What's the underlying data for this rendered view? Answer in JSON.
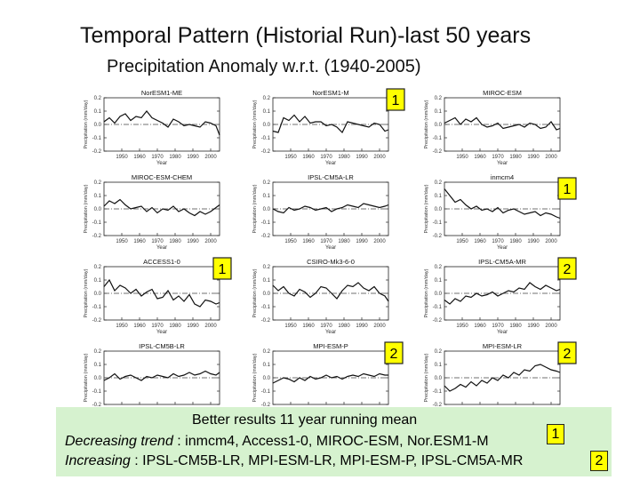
{
  "title": "Temporal Pattern (Historial Run)-last 50 years",
  "subtitle": "Precipitation Anomaly  w.r.t. (1940-2005)",
  "colors": {
    "line": "#111111",
    "zero_line": "#444444",
    "note_fill": "#ffff00",
    "summary_bg": "#d6f2cf"
  },
  "summary": {
    "heading": "Better results 11 year running mean",
    "decreasing_label": "Decreasing trend",
    "decreasing_models": " : inmcm4, Access1-0, MIROC-ESM, Nor.ESM1-M",
    "decreasing_rank": "1",
    "increasing_label": "Increasing",
    "increasing_models": " : IPSL-CM5B-LR, MPI-ESM-LR, MPI-ESM-P, IPSL-CM5A-MR",
    "increasing_rank": "2"
  },
  "chart_data": [
    {
      "type": "line",
      "title": "NorESM1-ME",
      "xlabel": "Year",
      "ylabel": "Precipitation (mm/day)",
      "xlim": [
        1940,
        2005
      ],
      "ylim": [
        -0.2,
        0.2
      ],
      "x": [
        1940,
        1943,
        1946,
        1949,
        1952,
        1955,
        1958,
        1961,
        1964,
        1967,
        1970,
        1973,
        1976,
        1979,
        1982,
        1985,
        1988,
        1991,
        1994,
        1997,
        2000,
        2003,
        2005
      ],
      "values": [
        0.02,
        0.05,
        0.01,
        0.06,
        0.08,
        0.03,
        0.06,
        0.05,
        0.1,
        0.05,
        0.03,
        0.01,
        -0.02,
        0.04,
        0.02,
        -0.01,
        0.0,
        -0.01,
        -0.02,
        0.02,
        0.01,
        -0.01,
        -0.08
      ],
      "rank": ""
    },
    {
      "type": "line",
      "title": "NorESM1-M",
      "xlabel": "Year",
      "ylabel": "Precipitation (mm/day)",
      "xlim": [
        1940,
        2005
      ],
      "ylim": [
        -0.2,
        0.2
      ],
      "x": [
        1940,
        1943,
        1946,
        1949,
        1952,
        1955,
        1958,
        1961,
        1964,
        1967,
        1970,
        1973,
        1976,
        1979,
        1982,
        1985,
        1988,
        1991,
        1994,
        1997,
        2000,
        2003,
        2005
      ],
      "values": [
        -0.05,
        -0.06,
        0.05,
        0.03,
        0.07,
        0.02,
        0.06,
        0.01,
        0.02,
        0.02,
        -0.01,
        0.0,
        -0.02,
        -0.06,
        0.02,
        0.01,
        0.0,
        -0.01,
        -0.02,
        0.01,
        0.0,
        -0.05,
        -0.04
      ],
      "rank": "1"
    },
    {
      "type": "line",
      "title": "MIROC-ESM",
      "xlabel": "Year",
      "ylabel": "Precipitation (mm/day)",
      "xlim": [
        1940,
        2005
      ],
      "ylim": [
        -0.2,
        0.2
      ],
      "x": [
        1940,
        1943,
        1946,
        1949,
        1952,
        1955,
        1958,
        1961,
        1964,
        1967,
        1970,
        1973,
        1976,
        1979,
        1982,
        1985,
        1988,
        1991,
        1994,
        1997,
        2000,
        2003,
        2005
      ],
      "values": [
        0.01,
        0.03,
        0.05,
        0.0,
        0.04,
        0.02,
        0.05,
        0.0,
        -0.02,
        -0.01,
        0.01,
        -0.03,
        -0.02,
        -0.01,
        0.0,
        -0.02,
        0.01,
        0.0,
        -0.03,
        -0.02,
        0.02,
        -0.04,
        -0.03
      ],
      "rank": ""
    },
    {
      "type": "line",
      "title": "MIROC-ESM-CHEM",
      "xlabel": "Year",
      "ylabel": "Precipitation (mm/day)",
      "xlim": [
        1940,
        2005
      ],
      "ylim": [
        -0.2,
        0.2
      ],
      "x": [
        1940,
        1943,
        1946,
        1949,
        1952,
        1955,
        1958,
        1961,
        1964,
        1967,
        1970,
        1973,
        1976,
        1979,
        1982,
        1985,
        1988,
        1991,
        1994,
        1997,
        2000,
        2003,
        2005
      ],
      "values": [
        0.02,
        0.06,
        0.04,
        0.07,
        0.03,
        0.0,
        0.01,
        0.02,
        -0.02,
        0.01,
        -0.03,
        0.0,
        -0.01,
        0.02,
        -0.02,
        0.0,
        -0.03,
        -0.05,
        -0.02,
        -0.04,
        -0.02,
        0.01,
        0.03
      ],
      "rank": ""
    },
    {
      "type": "line",
      "title": "IPSL-CM5A-LR",
      "xlabel": "Year",
      "ylabel": "Precipitation (mm/day)",
      "xlim": [
        1940,
        2005
      ],
      "ylim": [
        -0.2,
        0.2
      ],
      "x": [
        1940,
        1943,
        1946,
        1949,
        1952,
        1955,
        1958,
        1961,
        1964,
        1967,
        1970,
        1973,
        1976,
        1979,
        1982,
        1985,
        1988,
        1991,
        1994,
        1997,
        2000,
        2003,
        2005
      ],
      "values": [
        0.0,
        -0.02,
        -0.03,
        0.01,
        -0.01,
        0.0,
        0.02,
        0.01,
        -0.01,
        0.0,
        0.01,
        -0.02,
        0.0,
        0.01,
        0.03,
        0.02,
        0.01,
        0.04,
        0.03,
        0.02,
        0.01,
        0.02,
        0.03
      ],
      "rank": ""
    },
    {
      "type": "line",
      "title": "inmcm4",
      "xlabel": "Year",
      "ylabel": "Precipitation (mm/day)",
      "xlim": [
        1940,
        2005
      ],
      "ylim": [
        -0.2,
        0.2
      ],
      "x": [
        1940,
        1943,
        1946,
        1949,
        1952,
        1955,
        1958,
        1961,
        1964,
        1967,
        1970,
        1973,
        1976,
        1979,
        1982,
        1985,
        1988,
        1991,
        1994,
        1997,
        2000,
        2003,
        2005
      ],
      "values": [
        0.15,
        0.1,
        0.05,
        0.07,
        0.03,
        0.0,
        0.02,
        -0.01,
        0.0,
        -0.02,
        0.01,
        -0.03,
        -0.01,
        0.0,
        -0.02,
        -0.04,
        -0.03,
        -0.02,
        -0.05,
        -0.03,
        -0.04,
        -0.06,
        -0.07
      ],
      "rank": "1"
    },
    {
      "type": "line",
      "title": "ACCESS1-0",
      "xlabel": "Year",
      "ylabel": "Precipitation (mm/day)",
      "xlim": [
        1940,
        2005
      ],
      "ylim": [
        -0.2,
        0.2
      ],
      "x": [
        1940,
        1943,
        1946,
        1949,
        1952,
        1955,
        1958,
        1961,
        1964,
        1967,
        1970,
        1973,
        1976,
        1979,
        1982,
        1985,
        1988,
        1991,
        1994,
        1997,
        2000,
        2003,
        2005
      ],
      "values": [
        0.05,
        0.1,
        0.02,
        0.06,
        0.04,
        0.0,
        0.03,
        -0.02,
        0.01,
        0.03,
        -0.04,
        -0.03,
        0.02,
        -0.05,
        -0.02,
        -0.06,
        -0.01,
        -0.08,
        -0.1,
        -0.05,
        -0.06,
        -0.08,
        -0.07
      ],
      "rank": "1"
    },
    {
      "type": "line",
      "title": "CSIRO-Mk3-6-0",
      "xlabel": "Year",
      "ylabel": "Precipitation (mm/day)",
      "xlim": [
        1940,
        2005
      ],
      "ylim": [
        -0.2,
        0.2
      ],
      "x": [
        1940,
        1943,
        1946,
        1949,
        1952,
        1955,
        1958,
        1961,
        1964,
        1967,
        1970,
        1973,
        1976,
        1979,
        1982,
        1985,
        1988,
        1991,
        1994,
        1997,
        2000,
        2003,
        2005
      ],
      "values": [
        0.06,
        0.02,
        0.05,
        0.0,
        -0.02,
        0.03,
        0.01,
        -0.03,
        0.0,
        0.05,
        0.04,
        0.0,
        -0.04,
        0.02,
        0.06,
        0.05,
        0.08,
        0.04,
        0.02,
        0.05,
        0.0,
        -0.02,
        -0.06
      ],
      "rank": ""
    },
    {
      "type": "line",
      "title": "IPSL-CM5A-MR",
      "xlabel": "Year",
      "ylabel": "Precipitation (mm/day)",
      "xlim": [
        1940,
        2005
      ],
      "ylim": [
        -0.2,
        0.2
      ],
      "x": [
        1940,
        1943,
        1946,
        1949,
        1952,
        1955,
        1958,
        1961,
        1964,
        1967,
        1970,
        1973,
        1976,
        1979,
        1982,
        1985,
        1988,
        1991,
        1994,
        1997,
        2000,
        2003,
        2005
      ],
      "values": [
        -0.05,
        -0.08,
        -0.04,
        -0.06,
        -0.02,
        -0.03,
        0.0,
        -0.02,
        -0.01,
        0.01,
        -0.02,
        0.0,
        0.02,
        0.01,
        0.04,
        0.03,
        0.08,
        0.05,
        0.03,
        0.06,
        0.04,
        0.02,
        0.03
      ],
      "rank": "2"
    },
    {
      "type": "line",
      "title": "IPSL-CM5B-LR",
      "xlabel": "Year",
      "ylabel": "Precipitation (mm/day)",
      "xlim": [
        1940,
        2005
      ],
      "ylim": [
        -0.2,
        0.2
      ],
      "x": [
        1940,
        1943,
        1946,
        1949,
        1952,
        1955,
        1958,
        1961,
        1964,
        1967,
        1970,
        1973,
        1976,
        1979,
        1982,
        1985,
        1988,
        1991,
        1994,
        1997,
        2000,
        2003,
        2005
      ],
      "values": [
        -0.02,
        0.0,
        0.03,
        -0.01,
        0.01,
        0.02,
        0.0,
        -0.02,
        0.01,
        0.0,
        0.02,
        0.01,
        0.0,
        0.03,
        0.01,
        0.02,
        0.04,
        0.02,
        0.03,
        0.05,
        0.03,
        0.02,
        0.04
      ],
      "rank": ""
    },
    {
      "type": "line",
      "title": "MPI-ESM-P",
      "xlabel": "Year",
      "ylabel": "Precipitation (mm/day)",
      "xlim": [
        1940,
        2005
      ],
      "ylim": [
        -0.2,
        0.2
      ],
      "x": [
        1940,
        1943,
        1946,
        1949,
        1952,
        1955,
        1958,
        1961,
        1964,
        1967,
        1970,
        1973,
        1976,
        1979,
        1982,
        1985,
        1988,
        1991,
        1994,
        1997,
        2000,
        2003,
        2005
      ],
      "values": [
        -0.04,
        -0.02,
        0.0,
        -0.01,
        -0.03,
        0.0,
        -0.02,
        0.01,
        -0.01,
        0.0,
        0.02,
        0.0,
        0.01,
        -0.01,
        0.01,
        0.02,
        0.01,
        0.03,
        0.02,
        0.01,
        0.03,
        0.02,
        0.02
      ],
      "rank": "2"
    },
    {
      "type": "line",
      "title": "MPI-ESM-LR",
      "xlabel": "Year",
      "ylabel": "Precipitation (mm/day)",
      "xlim": [
        1940,
        2005
      ],
      "ylim": [
        -0.2,
        0.2
      ],
      "x": [
        1940,
        1943,
        1946,
        1949,
        1952,
        1955,
        1958,
        1961,
        1964,
        1967,
        1970,
        1973,
        1976,
        1979,
        1982,
        1985,
        1988,
        1991,
        1994,
        1997,
        2000,
        2003,
        2005
      ],
      "values": [
        -0.06,
        -0.1,
        -0.08,
        -0.05,
        -0.07,
        -0.03,
        -0.06,
        -0.02,
        -0.04,
        0.0,
        -0.02,
        0.02,
        0.0,
        0.04,
        0.02,
        0.06,
        0.05,
        0.09,
        0.1,
        0.08,
        0.06,
        0.05,
        0.04
      ],
      "rank": "2"
    }
  ]
}
